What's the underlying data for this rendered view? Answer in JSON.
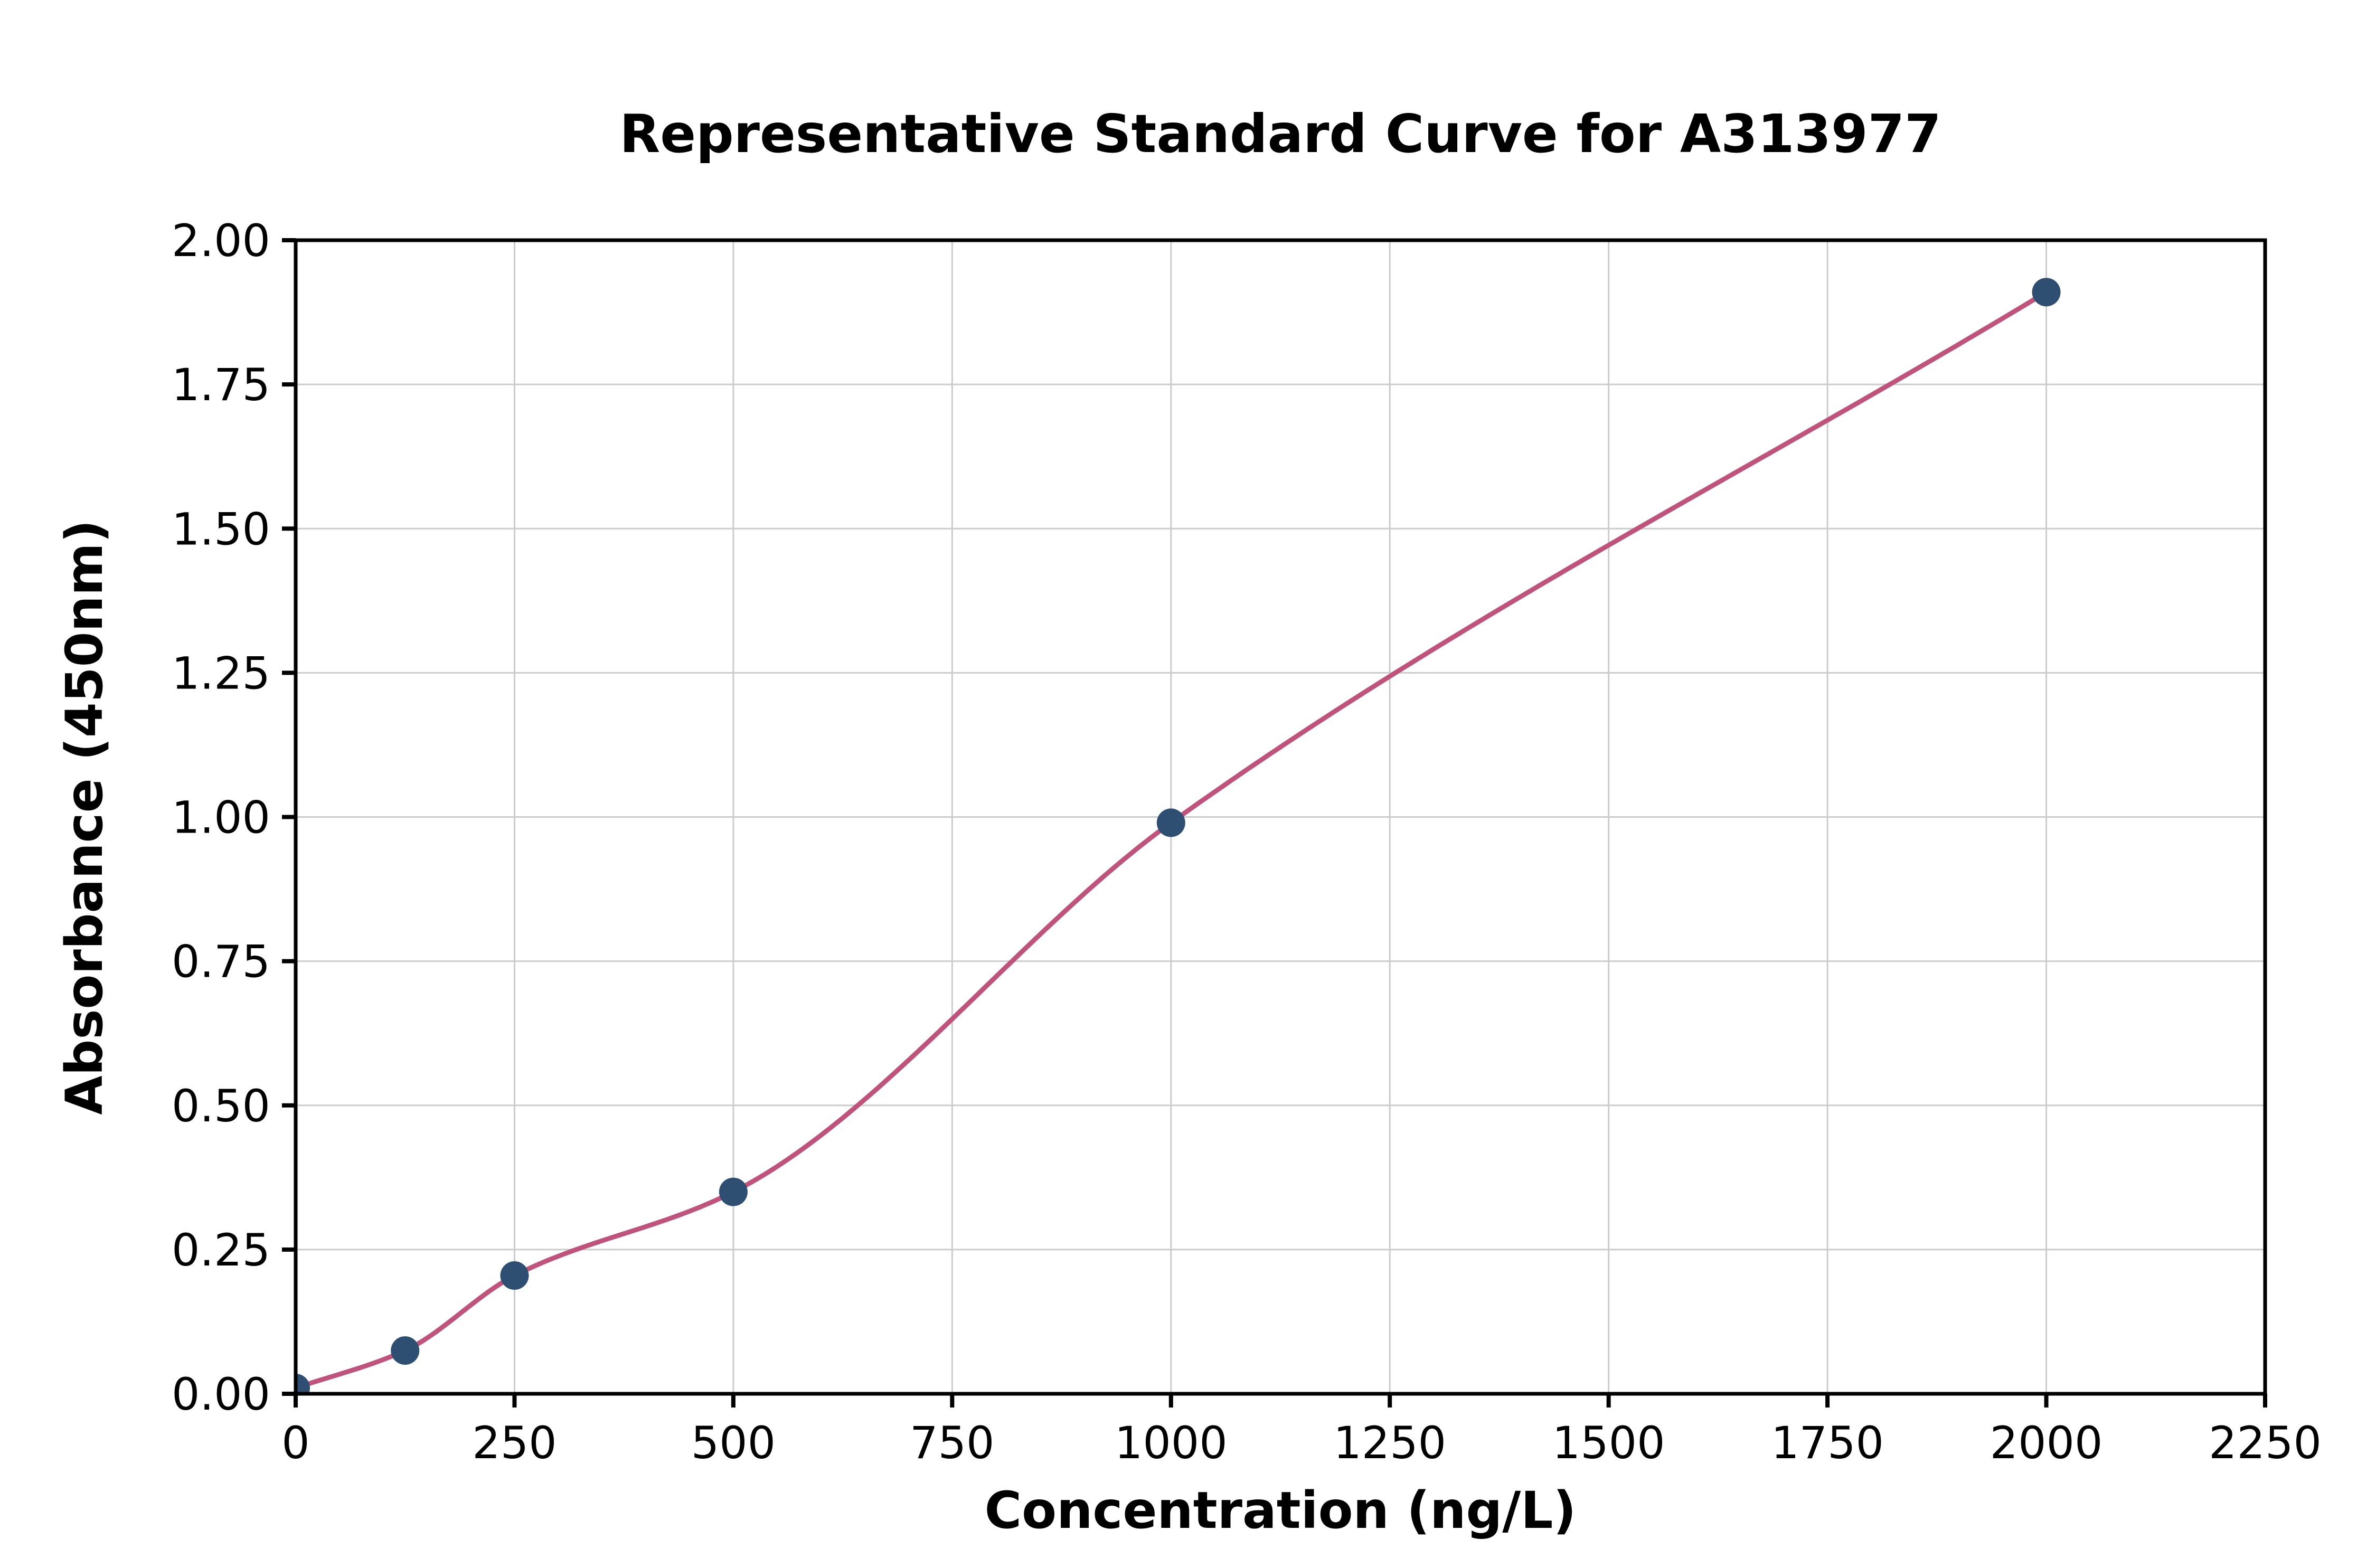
{
  "chart_data": {
    "type": "scatter",
    "title": "Representative Standard Curve for A313977",
    "xlabel": "Concentration (ng/L)",
    "ylabel": "Absorbance (450nm)",
    "xlim": [
      0,
      2250
    ],
    "ylim": [
      0,
      2.0
    ],
    "x_ticks": [
      0,
      250,
      500,
      750,
      1000,
      1250,
      1500,
      1750,
      2000,
      2250
    ],
    "x_tick_labels": [
      "0",
      "250",
      "500",
      "750",
      "1000",
      "1250",
      "1500",
      "1750",
      "2000",
      "2250"
    ],
    "y_ticks": [
      0.0,
      0.25,
      0.5,
      0.75,
      1.0,
      1.25,
      1.5,
      1.75,
      2.0
    ],
    "y_tick_labels": [
      "0.00",
      "0.25",
      "0.50",
      "0.75",
      "1.00",
      "1.25",
      "1.50",
      "1.75",
      "2.00"
    ],
    "points": [
      [
        0,
        0.01
      ],
      [
        125,
        0.075
      ],
      [
        250,
        0.205
      ],
      [
        500,
        0.35
      ],
      [
        1000,
        0.99
      ],
      [
        2000,
        1.91
      ]
    ],
    "fit": "smooth monotone curve through standard points (4PL-style fit)",
    "grid": true,
    "legend": "none",
    "colors": {
      "curve": "#c0537c",
      "points": "#2e4f72",
      "grid": "#cccccc",
      "axis": "#000000",
      "background": "#ffffff",
      "text": "#000000"
    }
  }
}
